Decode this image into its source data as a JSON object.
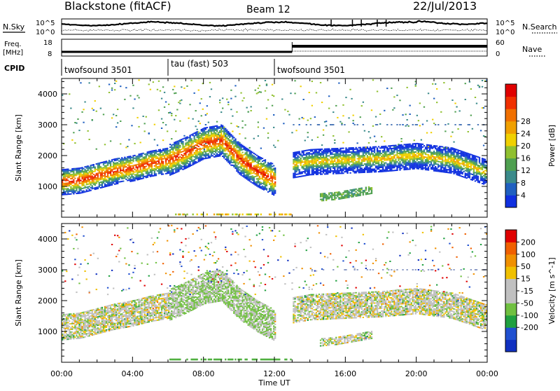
{
  "header": {
    "site": "Blackstone (fitACF)",
    "beam": "Beam 12",
    "date": "22/Jul/2013"
  },
  "labels": {
    "nsky": "N.Sky",
    "nsearch": "N.Search",
    "freq_line1": "Freq.",
    "freq_line2": "[MHz]",
    "nave": "Nave",
    "cpid": "CPID"
  },
  "noise_axis": {
    "left_ticks": [
      "10^5",
      "10^0"
    ],
    "right_ticks": [
      "10^5",
      "10^0"
    ]
  },
  "freq_axis": {
    "left_ticks": [
      "18",
      "8"
    ],
    "right_ticks": [
      "60",
      "0"
    ]
  },
  "cpid_segments": [
    {
      "label": "twofsound 3501",
      "start_hour": 0,
      "end_hour": 6
    },
    {
      "label": "tau (fast) 503",
      "start_hour": 6,
      "end_hour": 12
    },
    {
      "label": "twofsound 3501",
      "start_hour": 12,
      "end_hour": 24
    }
  ],
  "chart_data": [
    {
      "type": "heatmap",
      "panel": "power",
      "xlabel": "Time UT",
      "ylabel": "Slant Range [km]",
      "xlim": [
        0,
        24
      ],
      "ylim": [
        0,
        4500
      ],
      "x_ticks": [
        "00:00",
        "04:00",
        "08:00",
        "12:00",
        "16:00",
        "20:00",
        "00:00"
      ],
      "y_ticks": [
        1000,
        2000,
        3000,
        4000
      ],
      "colorbar": {
        "label": "Power [dB]",
        "ticks": [
          "4",
          "8",
          "12",
          "16",
          "20",
          "24",
          "28"
        ],
        "colors": [
          "#1030e0",
          "#2060c0",
          "#3a8a8a",
          "#4fa050",
          "#90c030",
          "#f0d000",
          "#f0a000",
          "#f07000",
          "#f03000",
          "#e00000"
        ]
      },
      "bands": [
        {
          "t": [
            0,
            1,
            2,
            3,
            4,
            5,
            6
          ],
          "range_km": [
            1150,
            1200,
            1350,
            1500,
            1600,
            1750,
            1850
          ],
          "intensity": "high"
        },
        {
          "t": [
            6,
            7,
            8,
            9,
            10,
            11,
            12
          ],
          "range_km": [
            1850,
            2100,
            2400,
            2500,
            1900,
            1500,
            1200
          ],
          "intensity": "mixed"
        },
        {
          "t": [
            13,
            14,
            16,
            18,
            20,
            22,
            24
          ],
          "range_km": [
            1700,
            1800,
            1850,
            1900,
            2000,
            1850,
            1450
          ],
          "intensity": "medium"
        },
        {
          "t": [
            14.5,
            15.5,
            16.5,
            17.5
          ],
          "range_km": [
            650,
            700,
            800,
            900
          ],
          "intensity": "medium"
        }
      ]
    },
    {
      "type": "heatmap",
      "panel": "velocity",
      "xlabel": "Time UT",
      "ylabel": "Slant Range [km]",
      "xlim": [
        0,
        24
      ],
      "ylim": [
        0,
        4500
      ],
      "x_ticks": [
        "00:00",
        "04:00",
        "08:00",
        "12:00",
        "16:00",
        "20:00",
        "00:00"
      ],
      "y_ticks": [
        1000,
        2000,
        3000,
        4000
      ],
      "colorbar": {
        "label": "Velocity [m s^-1]",
        "ticks": [
          "200",
          "100",
          "50",
          "15",
          "-15",
          "-50",
          "-100",
          "-200"
        ],
        "colors": [
          "#1030c0",
          "#2050d0",
          "#20a040",
          "#70c040",
          "#c0c0c0",
          "#c0c0c0",
          "#f0c000",
          "#f09000",
          "#f06000",
          "#e00000"
        ]
      }
    }
  ]
}
